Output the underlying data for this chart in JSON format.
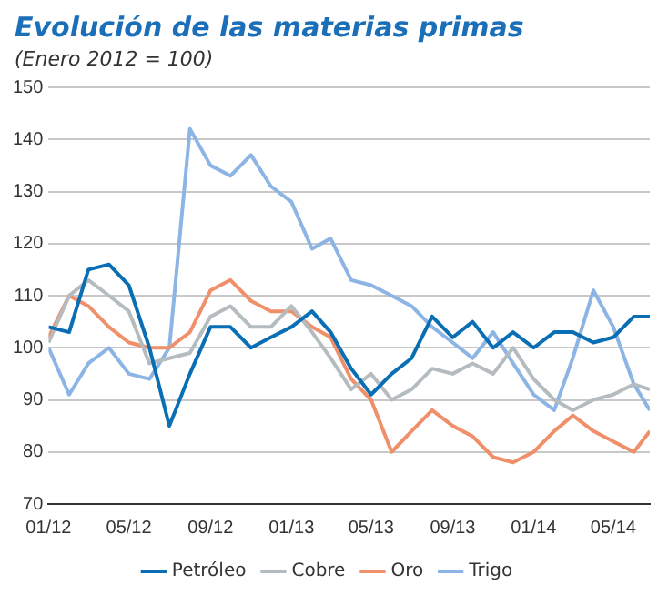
{
  "chart_data": {
    "type": "line",
    "title": "Evolución de las materias primas",
    "subtitle": "(Enero 2012 = 100)",
    "x": [
      "2012-01-01",
      "2012-02-01",
      "2012-03-01",
      "2012-04-01",
      "2012-05-01",
      "2012-06-01",
      "2012-07-01",
      "2012-08-01",
      "2012-09-01",
      "2012-10-01",
      "2012-11-01",
      "2012-12-01",
      "2013-01-01",
      "2013-02-01",
      "2013-03-01",
      "2013-04-01",
      "2013-05-01",
      "2013-06-01",
      "2013-07-01",
      "2013-08-01",
      "2013-09-01",
      "2013-10-01",
      "2013-11-01",
      "2013-12-01",
      "2014-01-01",
      "2014-02-01",
      "2014-03-01",
      "2014-04-01",
      "2014-05-01",
      "2014-06-01",
      "2014-06-25"
    ],
    "series": [
      {
        "name": "Petróleo",
        "color": "#0a6eb4",
        "values": [
          104,
          103,
          115,
          116,
          112,
          100,
          85,
          95,
          104,
          104,
          100,
          102,
          104,
          107,
          103,
          96,
          91,
          95,
          98,
          106,
          102,
          105,
          100,
          103,
          100,
          103,
          103,
          101,
          102,
          106,
          106
        ]
      },
      {
        "name": "Cobre",
        "color": "#b4bcc0",
        "values": [
          101,
          110,
          113,
          110,
          107,
          97,
          98,
          99,
          106,
          108,
          104,
          104,
          108,
          103,
          98,
          92,
          95,
          90,
          92,
          96,
          95,
          97,
          95,
          100,
          94,
          90,
          88,
          90,
          91,
          93,
          92
        ]
      },
      {
        "name": "Oro",
        "color": "#f0906a",
        "values": [
          102,
          110,
          108,
          104,
          101,
          100,
          100,
          103,
          111,
          113,
          109,
          107,
          107,
          104,
          102,
          94,
          90,
          80,
          84,
          88,
          85,
          83,
          79,
          78,
          80,
          84,
          87,
          84,
          82,
          80,
          84
        ]
      },
      {
        "name": "Trigo",
        "color": "#8cb4e4",
        "values": [
          100,
          91,
          97,
          100,
          95,
          94,
          100,
          142,
          135,
          133,
          137,
          131,
          128,
          119,
          121,
          113,
          112,
          110,
          108,
          104,
          101,
          98,
          103,
          97,
          91,
          88,
          98,
          111,
          104,
          93,
          88
        ]
      }
    ],
    "xlim": [
      "2012-01-01",
      "2014-06-25"
    ],
    "xticks": [
      {
        "value": "2012-01-01",
        "label": "01/12"
      },
      {
        "value": "2012-05-01",
        "label": "05/12"
      },
      {
        "value": "2012-09-01",
        "label": "09/12"
      },
      {
        "value": "2013-01-01",
        "label": "01/13"
      },
      {
        "value": "2013-05-01",
        "label": "05/13"
      },
      {
        "value": "2013-09-01",
        "label": "09/13"
      },
      {
        "value": "2014-01-01",
        "label": "01/14"
      },
      {
        "value": "2014-05-01",
        "label": "05/14"
      }
    ],
    "ylim": [
      70,
      150
    ],
    "yticks": [
      70,
      80,
      90,
      100,
      110,
      120,
      130,
      140,
      150
    ],
    "grid": "y",
    "legend": "bottom",
    "marker": "none",
    "line_style": "solid"
  }
}
